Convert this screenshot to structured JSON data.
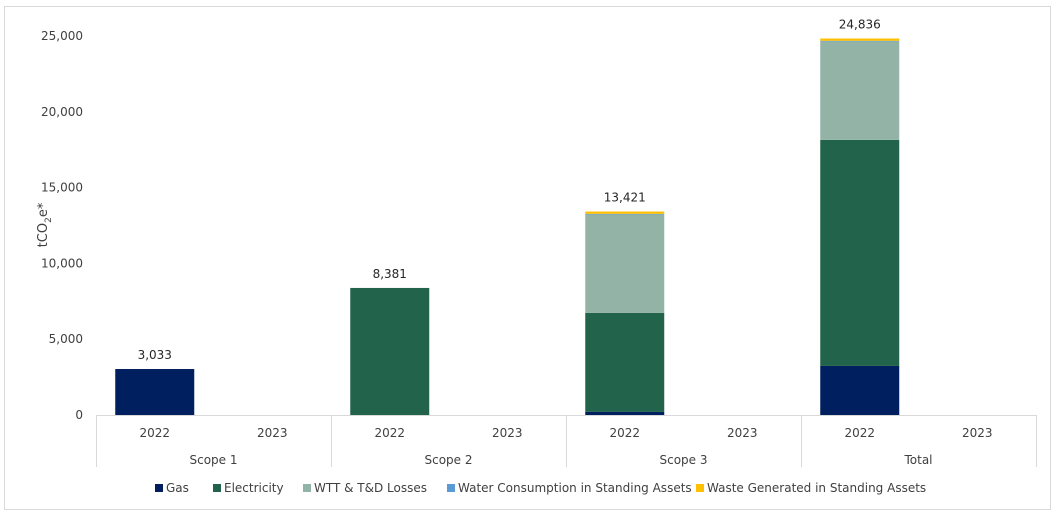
{
  "chart_data": {
    "type": "bar",
    "stacked": true,
    "title": "",
    "xlabel": "",
    "ylabel": "tCO2e*",
    "ylabel_parts": {
      "main": "tCO",
      "sub": "2",
      "tail": "e*"
    },
    "ylim": [
      0,
      25000
    ],
    "yticks": [
      0,
      5000,
      10000,
      15000,
      20000,
      25000
    ],
    "ytick_labels": [
      "0",
      "5,000",
      "10,000",
      "15,000",
      "20,000",
      "25,000"
    ],
    "grid": false,
    "legend_position": "bottom",
    "groups": [
      "Scope 1",
      "Scope 2",
      "Scope 3",
      "Total"
    ],
    "categories": [
      "2022",
      "2023",
      "2022",
      "2023",
      "2022",
      "2023",
      "2022",
      "2023"
    ],
    "series": [
      {
        "name": "Gas",
        "color": "#001f5f",
        "values": [
          3033,
          0,
          0,
          0,
          203,
          0,
          3236,
          0
        ]
      },
      {
        "name": "Electricity",
        "color": "#22634c",
        "values": [
          0,
          0,
          8381,
          0,
          6530,
          0,
          14911,
          0
        ]
      },
      {
        "name": "WTT & T&D Losses",
        "color": "#93b3a7",
        "values": [
          0,
          0,
          0,
          0,
          6510,
          0,
          6510,
          0
        ]
      },
      {
        "name": "Water Consumption in Standing Assets",
        "color": "#5b9bd5",
        "values": [
          0,
          0,
          0,
          0,
          28,
          0,
          28,
          0
        ]
      },
      {
        "name": "Waste Generated in Standing Assets",
        "color": "#ffc000",
        "values": [
          0,
          0,
          0,
          0,
          150,
          0,
          150,
          0
        ]
      }
    ],
    "data_labels": [
      "3,033",
      "",
      "8,381",
      "",
      "13,421",
      "",
      "24,836",
      ""
    ]
  }
}
